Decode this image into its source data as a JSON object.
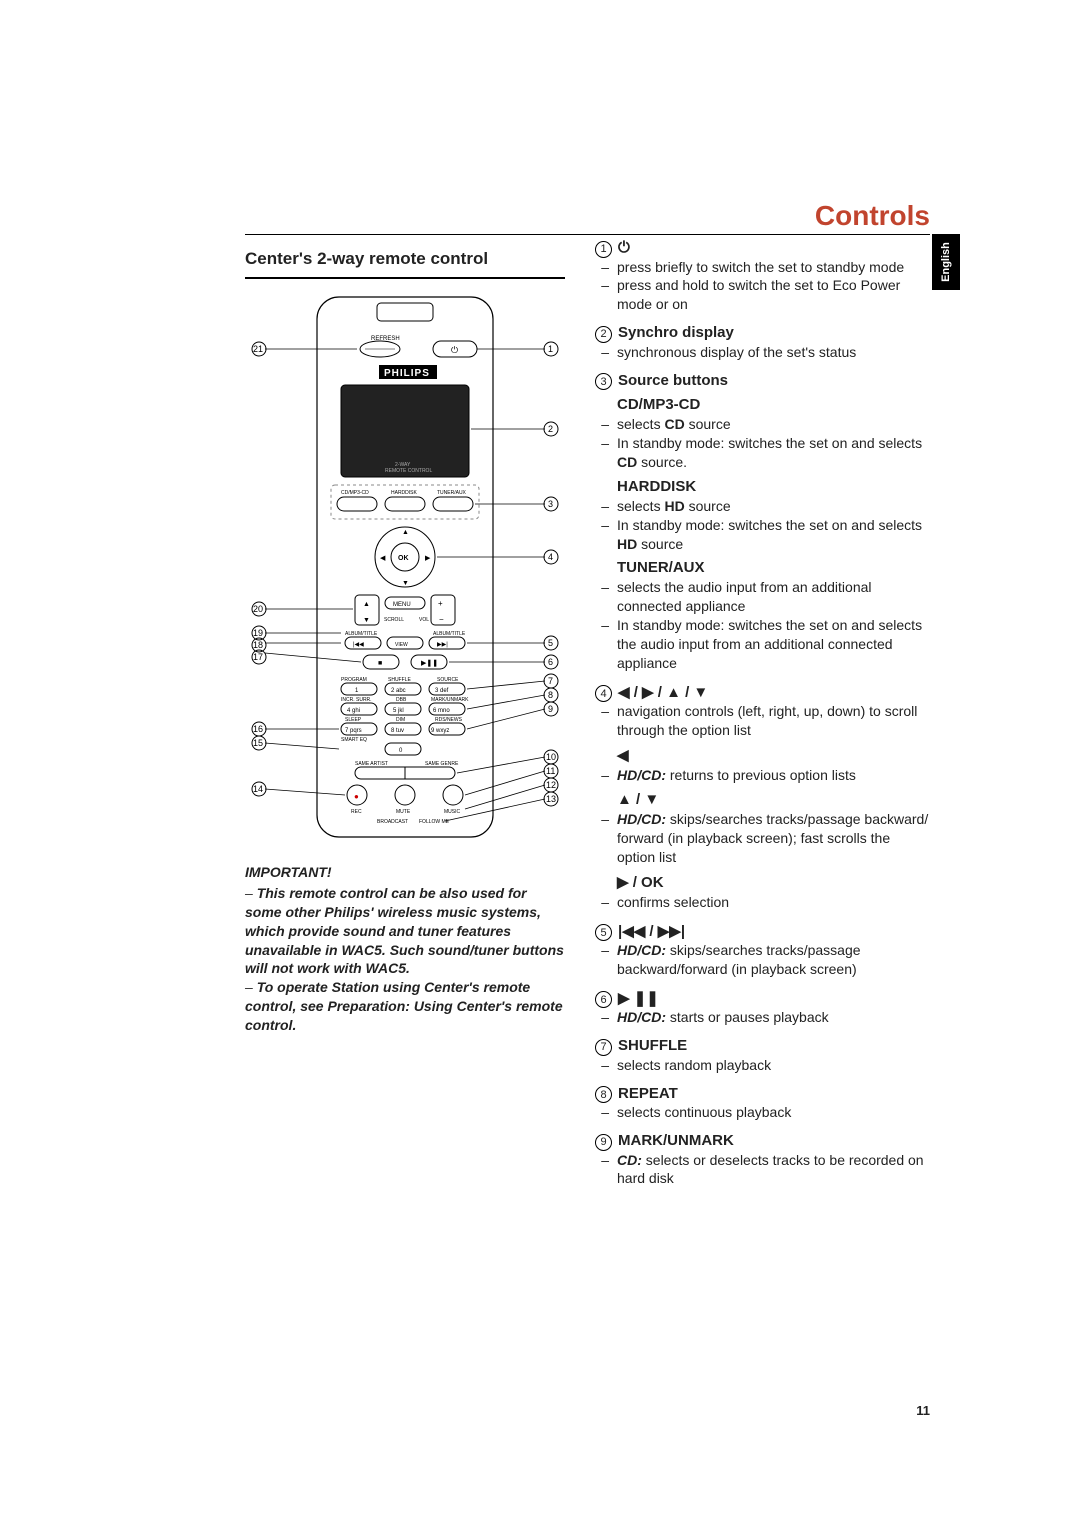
{
  "title": "Controls",
  "lang_tab": "English",
  "subheading": "Center's 2-way remote control",
  "page_number": "11",
  "colors": {
    "accent": "#c1442e",
    "text": "#222222",
    "rule": "#000000",
    "tab_bg": "#000000",
    "tab_fg": "#ffffff"
  },
  "remote": {
    "brand": "PHILIPS",
    "refresh_label": "REFRESH",
    "twoway_label_line1": "2-WAY",
    "twoway_label_line2": "REMOTE CONTROL",
    "ok_label": "OK",
    "source_buttons": [
      "CD/MP3-CD",
      "HARDDISK",
      "TUNER/AUX"
    ],
    "menu_label": "MENU",
    "scroll_label": "SCROLL",
    "vol_label": "VOL",
    "albumtitle_left": "ALBUM/TITLE",
    "albumtitle_right": "ALBUM/TITLE",
    "view_label": "VIEW",
    "row_labels_left": [
      "PROGRAM",
      "INCR. SURR.",
      "SLEEP",
      "SMART EQ"
    ],
    "row_labels_mid_top": [
      "SHUFFLE",
      "REPEAT"
    ],
    "row_labels_mid": [
      "DBB",
      "DIM"
    ],
    "row_labels_right": [
      "SOURCE",
      "MARK/UNMARK",
      "RDS/NEWS"
    ],
    "bottom_row_labels": [
      "SAME ARTIST",
      "SAME GENRE"
    ],
    "bottom_icons_labels": [
      "REC",
      "MUTE",
      "MUSIC"
    ],
    "bottom_small_labels": [
      "BROADCAST",
      "FOLLOW ME"
    ],
    "keypad_labels": [
      [
        "1",
        "2 abc",
        "3 def"
      ],
      [
        "4 ghi",
        "5 jkl",
        "6 mno"
      ],
      [
        "7 pqrs",
        "8 tuv",
        "9 wxyz"
      ],
      [
        "",
        "0",
        ""
      ]
    ],
    "callouts_right": [
      "1",
      "2",
      "3",
      "4",
      "5",
      "6",
      "7",
      "8",
      "9",
      "10",
      "11",
      "12",
      "13"
    ],
    "callouts_left": [
      "21",
      "20",
      "19",
      "18",
      "17",
      "16",
      "15",
      "14"
    ]
  },
  "important": {
    "title": "IMPORTANT!",
    "p1_prefix": "– ",
    "p1": "This remote control can be also used for some other Philips' wireless music systems, which provide sound and tuner features unavailable in WAC5. Such sound/tuner buttons will not work with WAC5.",
    "p2_prefix": "– ",
    "p2": "To operate Station using Center's remote control, see Preparation: Using Center's remote control."
  },
  "items": [
    {
      "num": "1",
      "head_sym": "⏻",
      "head_label": "",
      "lines": [
        {
          "dash": "–",
          "txt": "press briefly to switch the set to standby mode"
        },
        {
          "dash": "–",
          "txt": "press and hold to switch the set to Eco Power mode or on"
        }
      ]
    },
    {
      "num": "2",
      "head_label": "Synchro display",
      "lines": [
        {
          "dash": "–",
          "txt": "synchronous display of the set's status"
        }
      ]
    },
    {
      "num": "3",
      "head_label": "Source buttons",
      "subsections": [
        {
          "title": "CD/MP3-CD",
          "lines": [
            {
              "dash": "–",
              "txt_pre": "selects ",
              "bold": "CD",
              "txt_post": " source"
            },
            {
              "dash": "–",
              "txt_pre": "In standby mode: ",
              "plain": "switches the set on and selects ",
              "bold2": "CD",
              "txt_post2": " source."
            }
          ]
        },
        {
          "title": "HARDDISK",
          "lines": [
            {
              "dash": "–",
              "txt_pre": "selects ",
              "bold": "HD",
              "txt_post": " source"
            },
            {
              "dash": "–",
              "txt_pre": "In standby mode: switches the set on and selects ",
              "bold": "HD",
              "txt_post": " source"
            }
          ]
        },
        {
          "title": "TUNER/AUX",
          "lines": [
            {
              "dash": "–",
              "txt": "selects the audio input from an additional connected appliance"
            },
            {
              "dash": "–",
              "txt_pre": "In standby mode: ",
              "plain": "switches the set on and selects the audio input from an additional connected appliance"
            }
          ]
        }
      ]
    },
    {
      "num": "4",
      "head_sym": "◀ / ▶ / ▲ / ▼",
      "lines": [
        {
          "dash": "–",
          "txt": "navigation controls (left, right, up, down) to scroll through the option list"
        }
      ],
      "subsections": [
        {
          "title_sym": "◀",
          "lines": [
            {
              "dash": "–",
              "bolditalic": "HD/CD:",
              "txt": " returns to previous option lists"
            }
          ]
        },
        {
          "title_sym": "▲ / ▼",
          "lines": [
            {
              "dash": "–",
              "bolditalic": "HD/CD:",
              "txt": " skips/searches tracks/passage backward/ forward (in playback screen); fast scrolls the option list"
            }
          ]
        },
        {
          "title_sym": "▶ / OK",
          "lines": [
            {
              "dash": "–",
              "txt": "confirms selection"
            }
          ]
        }
      ]
    },
    {
      "num": "5",
      "head_sym": "|◀◀ / ▶▶|",
      "lines": [
        {
          "dash": "–",
          "bolditalic": "HD/CD:",
          "txt": " skips/searches tracks/passage backward/forward (in playback screen)"
        }
      ]
    },
    {
      "num": "6",
      "head_sym": "▶ ❚❚",
      "lines": [
        {
          "dash": "–",
          "bolditalic": "HD/CD:",
          "txt": " starts or pauses playback"
        }
      ]
    },
    {
      "num": "7",
      "head_label": "SHUFFLE",
      "lines": [
        {
          "dash": "–",
          "txt": "selects random playback"
        }
      ]
    },
    {
      "num": "8",
      "head_label": "REPEAT",
      "lines": [
        {
          "dash": "–",
          "txt": "selects continuous playback"
        }
      ]
    },
    {
      "num": "9",
      "head_label": "MARK/UNMARK",
      "lines": [
        {
          "dash": "–",
          "bolditalic": "CD:",
          "txt": " selects or deselects tracks to be recorded on hard disk"
        }
      ]
    }
  ]
}
